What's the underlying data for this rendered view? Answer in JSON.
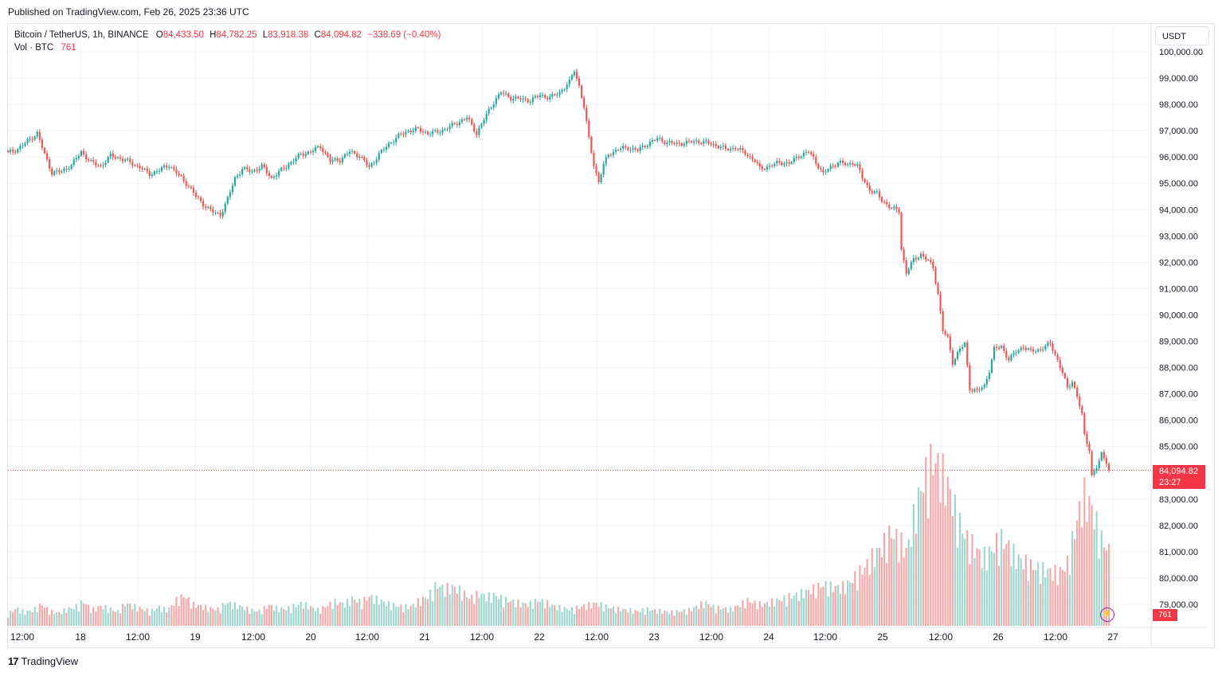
{
  "header": {
    "published": "Published on TradingView.com, Feb 26, 2025 23:36 UTC"
  },
  "legend": {
    "symbol": "Bitcoin / TetherUS, 1h, BINANCE",
    "o_label": "O",
    "o_value": "84,433.50",
    "h_label": "H",
    "h_value": "84,782.25",
    "l_label": "L",
    "l_value": "83,918.38",
    "c_label": "C",
    "c_value": "84,094.82",
    "change": "−338.69 (−0.40%)",
    "vol_label": "Vol · BTC",
    "vol_value": "761"
  },
  "currency_button": "USDT",
  "last_price": {
    "price": "84,094.82",
    "countdown": "23:27",
    "volume": "761"
  },
  "footer": {
    "brand": "TradingView",
    "logo": "tradingview-logo-icon"
  },
  "icons": {
    "bolt": "lightning-icon"
  },
  "colors": {
    "up": "#26a69a",
    "down": "#ef5350",
    "up_vol": "#9fd6ce",
    "down_vol": "#f4a8a8",
    "price_line": "#f23645",
    "grid": "#f0f3fa"
  },
  "chart_data": {
    "type": "candlestick",
    "title": "Bitcoin / TetherUS, 1h, BINANCE",
    "interval": "1h",
    "y_axis": {
      "ticks": [
        "100,000.00",
        "99,000.00",
        "98,000.00",
        "97,000.00",
        "96,000.00",
        "95,000.00",
        "94,000.00",
        "93,000.00",
        "92,000.00",
        "91,000.00",
        "90,000.00",
        "89,000.00",
        "88,000.00",
        "87,000.00",
        "86,000.00",
        "85,000.00",
        "83,000.00",
        "82,000.00",
        "81,000.00",
        "80,000.00",
        "79,000.00"
      ],
      "range": [
        78000,
        100300
      ],
      "currency": "USDT"
    },
    "x_axis": {
      "ticks": [
        "12:00",
        "18",
        "12:00",
        "19",
        "12:00",
        "20",
        "12:00",
        "21",
        "12:00",
        "22",
        "12:00",
        "23",
        "12:00",
        "24",
        "12:00",
        "25",
        "12:00",
        "26",
        "12:00",
        "27"
      ]
    },
    "price_line": 84094.82,
    "path": [
      [
        0,
        96150
      ],
      [
        4,
        96300
      ],
      [
        8,
        96600
      ],
      [
        12,
        96900
      ],
      [
        15,
        96100
      ],
      [
        18,
        95400
      ],
      [
        22,
        95450
      ],
      [
        26,
        95700
      ],
      [
        30,
        96200
      ],
      [
        34,
        95800
      ],
      [
        38,
        95650
      ],
      [
        42,
        96050
      ],
      [
        46,
        95950
      ],
      [
        50,
        95800
      ],
      [
        54,
        95600
      ],
      [
        58,
        95350
      ],
      [
        62,
        95500
      ],
      [
        66,
        95700
      ],
      [
        70,
        95300
      ],
      [
        74,
        94900
      ],
      [
        77,
        94500
      ],
      [
        80,
        94200
      ],
      [
        84,
        93900
      ],
      [
        87,
        93800
      ],
      [
        90,
        94400
      ],
      [
        93,
        95200
      ],
      [
        96,
        95550
      ],
      [
        100,
        95450
      ],
      [
        104,
        95650
      ],
      [
        108,
        95200
      ],
      [
        112,
        95500
      ],
      [
        116,
        95800
      ],
      [
        120,
        96100
      ],
      [
        124,
        96200
      ],
      [
        128,
        96400
      ],
      [
        132,
        95850
      ],
      [
        136,
        95900
      ],
      [
        140,
        96200
      ],
      [
        144,
        96050
      ],
      [
        148,
        95600
      ],
      [
        152,
        96100
      ],
      [
        156,
        96500
      ],
      [
        160,
        96800
      ],
      [
        164,
        97000
      ],
      [
        168,
        97050
      ],
      [
        172,
        96900
      ],
      [
        176,
        96950
      ],
      [
        180,
        97100
      ],
      [
        184,
        97300
      ],
      [
        188,
        97500
      ],
      [
        192,
        96900
      ],
      [
        196,
        97600
      ],
      [
        199,
        98100
      ],
      [
        202,
        98450
      ],
      [
        206,
        98250
      ],
      [
        210,
        98200
      ],
      [
        214,
        98150
      ],
      [
        218,
        98350
      ],
      [
        222,
        98250
      ],
      [
        226,
        98450
      ],
      [
        230,
        98850
      ],
      [
        232,
        99300
      ],
      [
        234,
        98700
      ],
      [
        236,
        97900
      ],
      [
        238,
        96700
      ],
      [
        240,
        95700
      ],
      [
        242,
        95050
      ],
      [
        244,
        95700
      ],
      [
        246,
        96100
      ],
      [
        250,
        96300
      ],
      [
        254,
        96350
      ],
      [
        258,
        96250
      ],
      [
        262,
        96500
      ],
      [
        266,
        96700
      ],
      [
        270,
        96550
      ],
      [
        274,
        96500
      ],
      [
        278,
        96550
      ],
      [
        282,
        96600
      ],
      [
        286,
        96550
      ],
      [
        290,
        96450
      ],
      [
        294,
        96300
      ],
      [
        298,
        96350
      ],
      [
        302,
        96150
      ],
      [
        306,
        95850
      ],
      [
        308,
        95550
      ],
      [
        312,
        95650
      ],
      [
        316,
        95800
      ],
      [
        320,
        95750
      ],
      [
        324,
        96050
      ],
      [
        328,
        96200
      ],
      [
        330,
        95950
      ],
      [
        332,
        95650
      ],
      [
        334,
        95350
      ],
      [
        336,
        95550
      ],
      [
        340,
        95800
      ],
      [
        344,
        95700
      ],
      [
        346,
        95800
      ],
      [
        348,
        95650
      ],
      [
        350,
        95200
      ],
      [
        353,
        94750
      ],
      [
        356,
        94600
      ],
      [
        358,
        94350
      ],
      [
        362,
        94050
      ],
      [
        365,
        93950
      ],
      [
        366,
        92500
      ],
      [
        368,
        91600
      ],
      [
        371,
        92100
      ],
      [
        374,
        92300
      ],
      [
        377,
        92050
      ],
      [
        379,
        91800
      ],
      [
        381,
        90800
      ],
      [
        383,
        89400
      ],
      [
        385,
        89100
      ],
      [
        387,
        88200
      ],
      [
        390,
        88700
      ],
      [
        392,
        88900
      ],
      [
        394,
        87200
      ],
      [
        397,
        87100
      ],
      [
        400,
        87300
      ],
      [
        402,
        87900
      ],
      [
        404,
        88700
      ],
      [
        407,
        88800
      ],
      [
        410,
        88300
      ],
      [
        413,
        88600
      ],
      [
        416,
        88800
      ],
      [
        419,
        88600
      ],
      [
        423,
        88700
      ],
      [
        427,
        88900
      ],
      [
        429,
        88500
      ],
      [
        432,
        87800
      ],
      [
        434,
        87200
      ],
      [
        436,
        87500
      ],
      [
        438,
        86900
      ],
      [
        440,
        86200
      ],
      [
        441,
        85400
      ],
      [
        443,
        84900
      ],
      [
        444,
        83900
      ],
      [
        446,
        84200
      ],
      [
        448,
        84700
      ],
      [
        450,
        84433
      ],
      [
        451,
        84094.82
      ]
    ],
    "wick_scale": 140,
    "volume": {
      "label": "Vol · BTC",
      "last": 761,
      "base": [
        120,
        180,
        140,
        160,
        220,
        150,
        130,
        170,
        190,
        250,
        160,
        200,
        180,
        140,
        230,
        200,
        170,
        150,
        190,
        160,
        260,
        310,
        220,
        200,
        180,
        170,
        240,
        210,
        190,
        160,
        150,
        210,
        180,
        170,
        200,
        230,
        190,
        160,
        210,
        250,
        220,
        280,
        240,
        300,
        270,
        230,
        210,
        190,
        200,
        260,
        300,
        420,
        380,
        400,
        350,
        280,
        330,
        300,
        310,
        270,
        250,
        230,
        220,
        260,
        240,
        200,
        180,
        170,
        190,
        210,
        230,
        200,
        180,
        170,
        160,
        150,
        170,
        160,
        150,
        140,
        150,
        160,
        200,
        240,
        190,
        180,
        170,
        210,
        260,
        230,
        220,
        250,
        270,
        300,
        320,
        350,
        380,
        420,
        400,
        390,
        430,
        520,
        600,
        720,
        800,
        950,
        880,
        760,
        1200,
        1500,
        1700,
        1600,
        1400,
        1100,
        900,
        800,
        700,
        760,
        900,
        820,
        700,
        650,
        600,
        580,
        560,
        540,
        620,
        1000,
        1350,
        1200,
        900,
        761
      ]
    }
  }
}
